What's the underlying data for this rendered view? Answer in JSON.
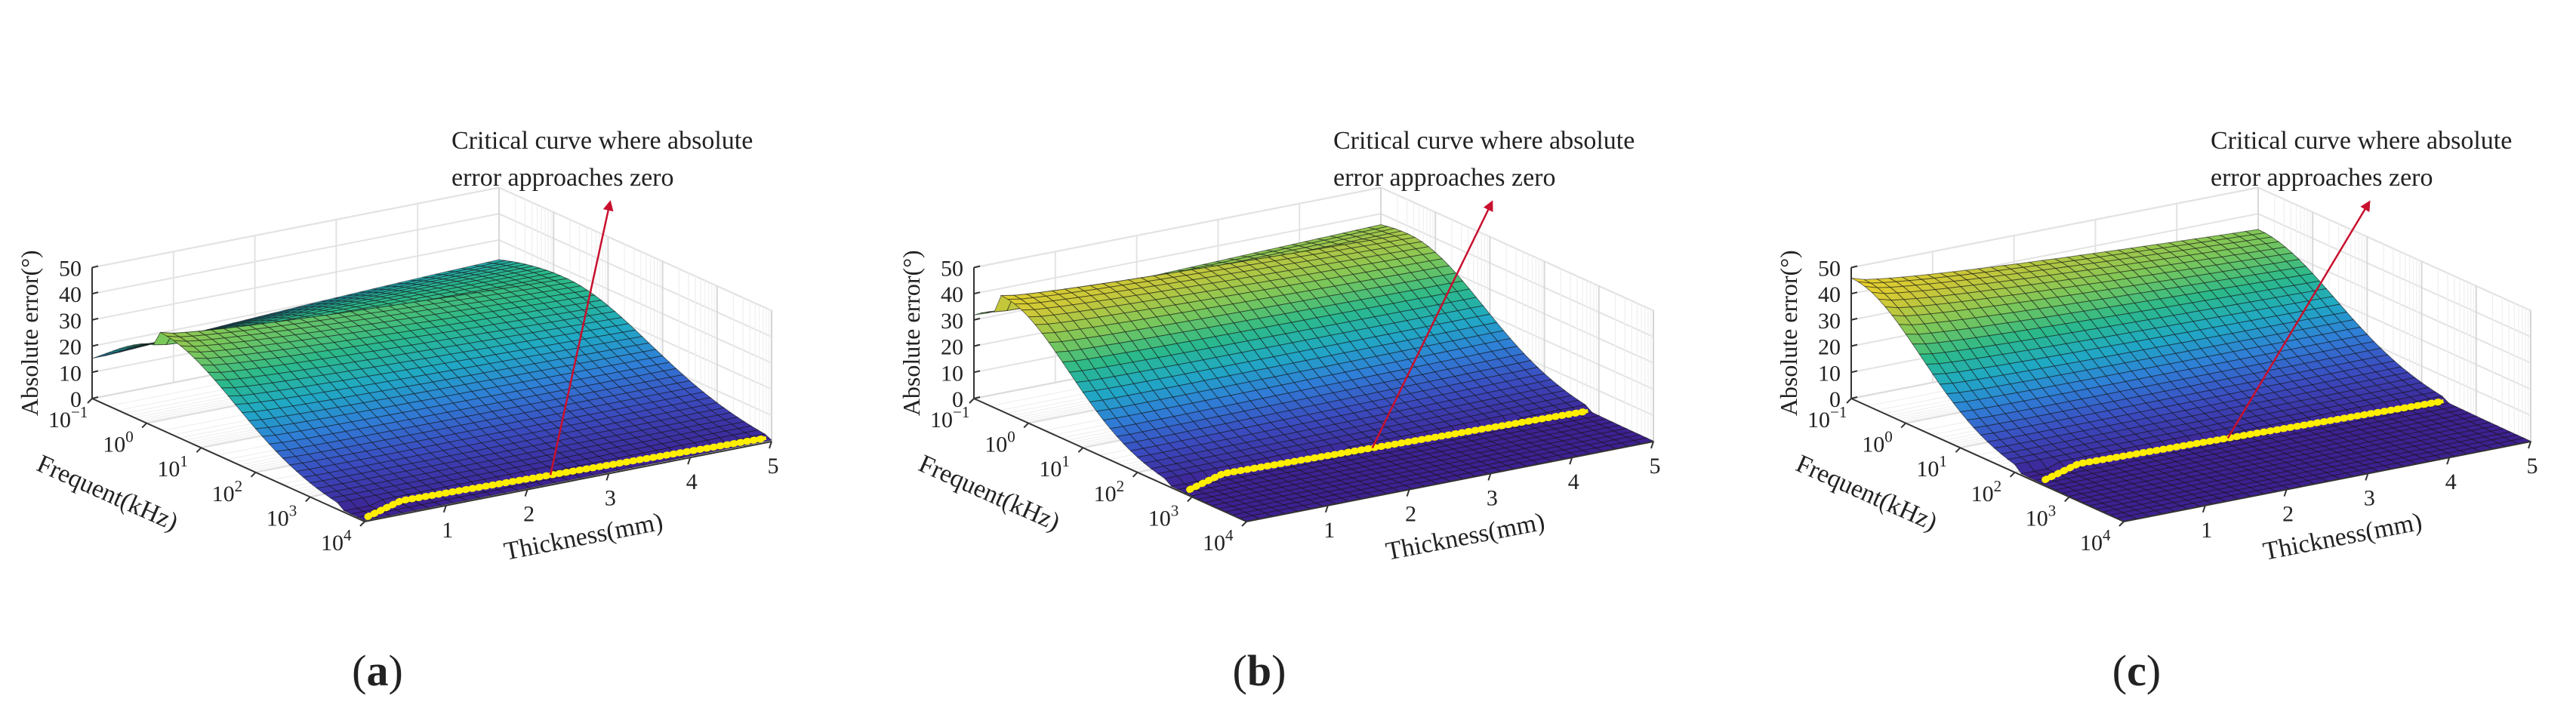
{
  "colors": {
    "annotation_arrow": "#c8102e",
    "critical_curve": "#ffee00",
    "colormap": [
      "#3d1f8f",
      "#3b4cc0",
      "#2f7fd7",
      "#20a9c4",
      "#2bb98b",
      "#7bc75a",
      "#c9c739",
      "#f6d526"
    ]
  },
  "chart_data": [
    {
      "type": "surface3d",
      "panel_label": "a",
      "zlabel": "Absolute error(°)",
      "ylabel": "Frequent(kHz)",
      "xlabel": "Thickness(mm)",
      "zlim": [
        0,
        50
      ],
      "z_ticks": [
        "0",
        "10",
        "20",
        "30",
        "40",
        "50"
      ],
      "freq_ticks": [
        {
          "base": "10",
          "exp": "−1"
        },
        {
          "base": "10",
          "exp": "0"
        },
        {
          "base": "10",
          "exp": "1"
        },
        {
          "base": "10",
          "exp": "2"
        },
        {
          "base": "10",
          "exp": "3"
        },
        {
          "base": "10",
          "exp": "4"
        }
      ],
      "thickness_ticks": [
        "1",
        "2",
        "3",
        "4",
        "5"
      ],
      "annotation": [
        "Critical curve where absolute",
        "error approaches zero"
      ],
      "peak_error_deg": 37,
      "peak_log_freq": 0.2,
      "high_thickness_plateau_deg": 27,
      "critical_curve_log_freq": 3.3
    },
    {
      "type": "surface3d",
      "panel_label": "b",
      "zlabel": "Absolute error(°)",
      "ylabel": "Frequent(kHz)",
      "xlabel": "Thickness(mm)",
      "zlim": [
        0,
        50
      ],
      "z_ticks": [
        "0",
        "10",
        "20",
        "30",
        "40",
        "50"
      ],
      "freq_ticks": [
        {
          "base": "10",
          "exp": "−1"
        },
        {
          "base": "10",
          "exp": "0"
        },
        {
          "base": "10",
          "exp": "1"
        },
        {
          "base": "10",
          "exp": "2"
        },
        {
          "base": "10",
          "exp": "3"
        },
        {
          "base": "10",
          "exp": "4"
        }
      ],
      "thickness_ticks": [
        "1",
        "2",
        "3",
        "4",
        "5"
      ],
      "annotation": [
        "Critical curve where absolute",
        "error approaches zero"
      ],
      "peak_error_deg": 44,
      "peak_log_freq": -0.5,
      "high_thickness_plateau_deg": 37,
      "critical_curve_log_freq": 2.2
    },
    {
      "type": "surface3d",
      "panel_label": "c",
      "zlabel": "Absolute error(°)",
      "ylabel": "Frequent(kHz)",
      "xlabel": "Thickness(mm)",
      "zlim": [
        0,
        50
      ],
      "z_ticks": [
        "0",
        "10",
        "20",
        "30",
        "40",
        "50"
      ],
      "freq_ticks": [
        {
          "base": "10",
          "exp": "−1"
        },
        {
          "base": "10",
          "exp": "0"
        },
        {
          "base": "10",
          "exp": "1"
        },
        {
          "base": "10",
          "exp": "2"
        },
        {
          "base": "10",
          "exp": "3"
        },
        {
          "base": "10",
          "exp": "4"
        }
      ],
      "thickness_ticks": [
        "1",
        "2",
        "3",
        "4",
        "5"
      ],
      "annotation": [
        "Critical curve where absolute",
        "error approaches zero"
      ],
      "peak_error_deg": 46,
      "peak_log_freq": -1.0,
      "high_thickness_plateau_deg": 34,
      "critical_curve_log_freq": 1.8
    }
  ]
}
